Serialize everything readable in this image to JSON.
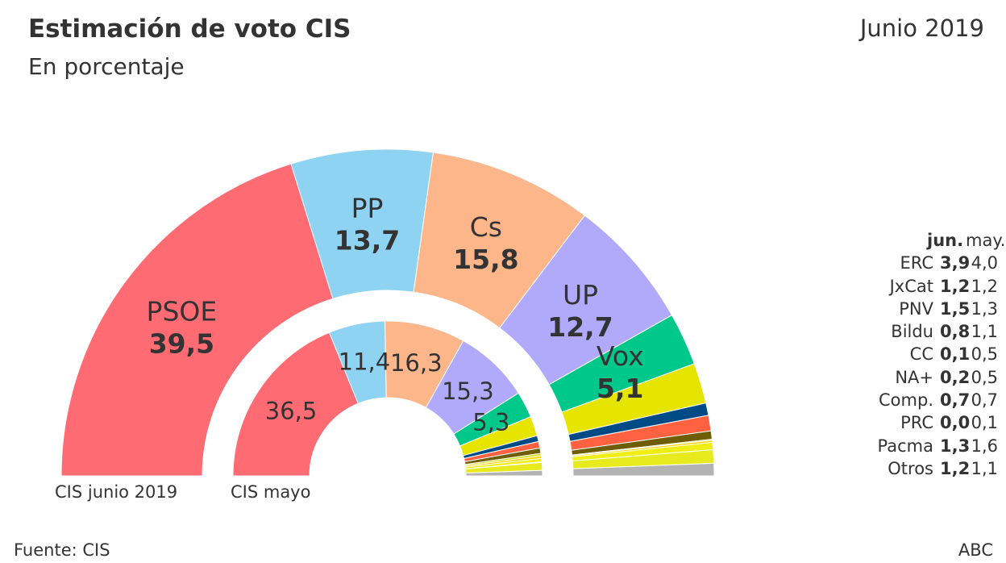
{
  "title": "Estimación de voto CIS",
  "subtitle": "En porcentaje",
  "date": "Junio 2019",
  "source": "Fuente: CIS",
  "brand": "ABC",
  "outer_label": "CIS junio 2019",
  "inner_label": "CIS mayo",
  "table_header": {
    "jun": "jun.",
    "may": "may."
  },
  "chart_data": {
    "type": "pie",
    "subtype": "semicircle-donut",
    "categories": [
      "PSOE",
      "PP",
      "Cs",
      "UP",
      "Vox",
      "ERC",
      "JxCat",
      "PNV",
      "Bildu",
      "CC",
      "NA+",
      "Comp.",
      "PRC",
      "Pacma",
      "Otros"
    ],
    "colors": [
      "#ff6b73",
      "#8fd3f3",
      "#fdb58a",
      "#b1a9fa",
      "#00c88a",
      "#e5e500",
      "#004b85",
      "#ff6141",
      "#6e5e00",
      "#d4dd11",
      "#ffd500",
      "#f0ee14",
      "#ee3f4f",
      "#e7ea1d",
      "#b3b3b3"
    ],
    "series": [
      {
        "name": "CIS junio 2019",
        "labels": [
          "39,5",
          "13,7",
          "15,8",
          "12,7",
          "5,1"
        ],
        "values": [
          39.5,
          13.7,
          15.8,
          12.7,
          5.1,
          3.9,
          1.2,
          1.5,
          0.8,
          0.1,
          0.2,
          0.7,
          0.0,
          1.3,
          1.2
        ]
      },
      {
        "name": "CIS mayo",
        "labels": [
          "36,5",
          "11,4",
          "16,3",
          "15,3",
          "5,3"
        ],
        "values": [
          36.5,
          11.4,
          16.3,
          15.3,
          5.3,
          4.0,
          1.2,
          1.3,
          1.1,
          0.5,
          0.5,
          0.7,
          0.1,
          1.6,
          1.1
        ]
      }
    ],
    "others_table": [
      {
        "name": "ERC",
        "jun": "3,9",
        "may": "4,0"
      },
      {
        "name": "JxCat",
        "jun": "1,2",
        "may": "1,2"
      },
      {
        "name": "PNV",
        "jun": "1,5",
        "may": "1,3"
      },
      {
        "name": "Bildu",
        "jun": "0,8",
        "may": "1,1"
      },
      {
        "name": "CC",
        "jun": "0,1",
        "may": "0,5"
      },
      {
        "name": "NA+",
        "jun": "0,2",
        "may": "0,5"
      },
      {
        "name": "Comp.",
        "jun": "0,7",
        "may": "0,7"
      },
      {
        "name": "PRC",
        "jun": "0,0",
        "may": "0,1"
      },
      {
        "name": "Pacma",
        "jun": "1,3",
        "may": "1,6"
      },
      {
        "name": "Otros",
        "jun": "1,2",
        "may": "1,1"
      }
    ]
  }
}
